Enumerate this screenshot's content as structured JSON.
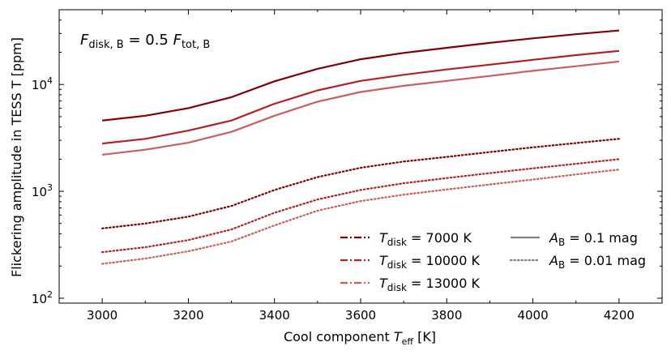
{
  "chart_data": {
    "type": "line",
    "annotation": {
      "main": "F",
      "main_sub": "disk, B",
      "mid": " = 0.5 ",
      "var": "F",
      "var_sub": "tot, B"
    },
    "xlabel": {
      "text": "Cool component ",
      "var": "T",
      "sub": "eff",
      "suffix": " [K]"
    },
    "ylabel": "Flickering amplitude in TESS T [ppm]",
    "yscale": "log",
    "xlim": [
      2900,
      4300
    ],
    "ylim": [
      90,
      50000
    ],
    "xticks": [
      3000,
      3200,
      3400,
      3600,
      3800,
      4000,
      4200
    ],
    "xtick_labels": [
      "3000",
      "3200",
      "3400",
      "3600",
      "3800",
      "4000",
      "4200"
    ],
    "yticks": [
      {
        "value": 100,
        "base": "10",
        "exp": "2"
      },
      {
        "value": 1000,
        "base": "10",
        "exp": "3"
      },
      {
        "value": 10000,
        "base": "10",
        "exp": "4"
      }
    ],
    "x": [
      3000,
      3100,
      3200,
      3300,
      3400,
      3500,
      3600,
      3700,
      3800,
      3900,
      4000,
      4100,
      4200
    ],
    "series": [
      {
        "disk": "7000 K",
        "A": "0.1 mag",
        "color": "#800000",
        "style": "solid",
        "values": [
          4600,
          5100,
          6000,
          7600,
          10700,
          14000,
          17200,
          19700,
          22000,
          24500,
          27000,
          29500,
          32000
        ]
      },
      {
        "disk": "10000 K",
        "A": "0.1 mag",
        "color": "#b22222",
        "style": "solid",
        "values": [
          2800,
          3100,
          3700,
          4600,
          6600,
          8800,
          10800,
          12300,
          13800,
          15300,
          17000,
          18800,
          20600
        ]
      },
      {
        "disk": "13000 K",
        "A": "0.1 mag",
        "color": "#cd5c5c",
        "style": "solid",
        "values": [
          2200,
          2450,
          2850,
          3600,
          5100,
          6900,
          8500,
          9700,
          10800,
          12000,
          13400,
          14800,
          16400
        ]
      },
      {
        "disk": "7000 K",
        "A": "0.01 mag",
        "color": "#800000",
        "style": "dotted",
        "values": [
          450,
          500,
          580,
          730,
          1030,
          1360,
          1660,
          1900,
          2100,
          2330,
          2580,
          2830,
          3100
        ]
      },
      {
        "disk": "10000 K",
        "A": "0.01 mag",
        "color": "#b22222",
        "style": "dotted",
        "values": [
          270,
          300,
          350,
          440,
          630,
          840,
          1030,
          1190,
          1330,
          1480,
          1640,
          1810,
          2000
        ]
      },
      {
        "disk": "13000 K",
        "A": "0.01 mag",
        "color": "#cd5c5c",
        "style": "dotted",
        "values": [
          210,
          235,
          275,
          340,
          480,
          660,
          810,
          930,
          1040,
          1160,
          1290,
          1440,
          1600
        ]
      }
    ],
    "legend": {
      "placement": "lower-right",
      "disk_entries": [
        {
          "var": "T",
          "sub": "disk",
          "value": " = 7000 K",
          "color": "#800000"
        },
        {
          "var": "T",
          "sub": "disk",
          "value": " = 10000 K",
          "color": "#b22222"
        },
        {
          "var": "T",
          "sub": "disk",
          "value": " = 13000 K",
          "color": "#cd5c5c"
        }
      ],
      "amp_entries": [
        {
          "var": "A",
          "sub": "B",
          "value": " = 0.1 mag",
          "style": "solid",
          "color": "#808080"
        },
        {
          "var": "A",
          "sub": "B",
          "value": " = 0.01 mag",
          "style": "dotted",
          "color": "#808080"
        }
      ]
    }
  }
}
